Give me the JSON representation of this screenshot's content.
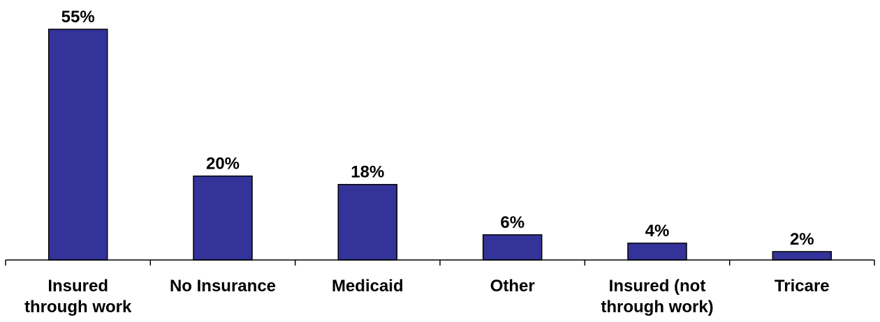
{
  "chart_data": {
    "type": "bar",
    "title": "",
    "xlabel": "",
    "ylabel": "",
    "categories": [
      [
        "Insured",
        "through work"
      ],
      [
        "No Insurance"
      ],
      [
        "Medicaid"
      ],
      [
        "Other"
      ],
      [
        "Insured (not",
        "through work)"
      ],
      [
        "Tricare"
      ]
    ],
    "values": [
      55,
      20,
      18,
      6,
      4,
      2
    ],
    "value_labels": [
      "55%",
      "20%",
      "18%",
      "6%",
      "4%",
      "2%"
    ],
    "ylim": [
      0,
      55
    ],
    "grid": false,
    "legend": "none",
    "colors": {
      "bar_fill": "#333399",
      "bar_stroke": "#000000",
      "axis": "#000000",
      "text": "#000000"
    }
  }
}
